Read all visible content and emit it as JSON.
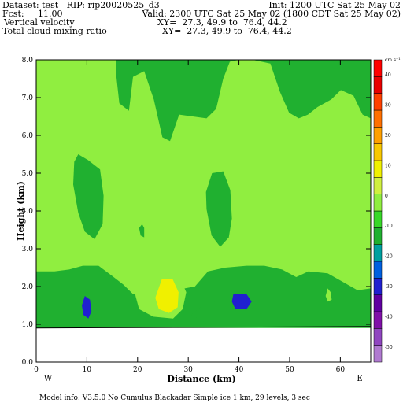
{
  "header": {
    "dataset": "Dataset: test   RIP: rip20020525_d3",
    "init": "Init: 1200 UTC Sat 25 May 02",
    "fcst": "Fcst:     11.00",
    "valid": "Valid: 2300 UTC Sat 25 May 02 (1800 CDT Sat 25 May 02)",
    "field1": "Vertical velocity",
    "xy1": "XY=  27.3, 49.9 to  76.4, 44.2",
    "field2": "Total cloud mixing ratio",
    "xy2": "XY=  27.3, 49.9 to  76.4, 44.2"
  },
  "footer": {
    "model_info": "Model info: V3.5.0 No Cumulus Blackadar  Simple ice     1 km,   29 levels,     3 sec"
  },
  "chart_data": {
    "type": "heatmap",
    "xlabel": "Distance (km)",
    "ylabel": "Height (km)",
    "xlim": [
      0,
      66
    ],
    "ylim": [
      0,
      8
    ],
    "x_ticks": [
      "0",
      "10",
      "20",
      "30",
      "40",
      "50",
      "60"
    ],
    "y_ticks": [
      "0.0",
      "1.0",
      "2.0",
      "3.0",
      "4.0",
      "5.0",
      "6.0",
      "7.0",
      "8.0"
    ],
    "endpoint_labels": {
      "left": "W",
      "right": "E"
    },
    "colorbar": {
      "unit": "cm s⁻¹",
      "levels": [
        -50,
        -40,
        -30,
        -20,
        -10,
        0,
        10,
        20,
        30,
        40
      ],
      "colors": [
        "#b07ad0",
        "#9046c0",
        "#8010a8",
        "#6000a0",
        "#2020d0",
        "#0060e0",
        "#00a0a0",
        "#20b030",
        "#38d828",
        "#90ee40",
        "#d0f040",
        "#f0f000",
        "#f8c800",
        "#ffa000",
        "#ff7000",
        "#ff4000",
        "#e80000",
        "#ff0000"
      ]
    },
    "terrain_height_km": 0.9,
    "background_value": 0,
    "regions": [
      {
        "value": -5,
        "points": [
          [
            0,
            8
          ],
          [
            15.7,
            8
          ],
          [
            15.7,
            7.7
          ],
          [
            16.4,
            6.85
          ],
          [
            18.3,
            6.65
          ],
          [
            19.1,
            7.55
          ],
          [
            21.3,
            7.7
          ],
          [
            23.2,
            6.95
          ],
          [
            24.9,
            5.95
          ],
          [
            26.4,
            5.85
          ],
          [
            28.2,
            6.55
          ],
          [
            33.6,
            6.45
          ],
          [
            35.5,
            6.7
          ],
          [
            36.9,
            7.5
          ],
          [
            38.2,
            7.95
          ],
          [
            40,
            8
          ],
          [
            0,
            8
          ]
        ]
      },
      {
        "value": -5,
        "points": [
          [
            42.7,
            8
          ],
          [
            46.2,
            7.9
          ],
          [
            48.1,
            7.15
          ],
          [
            49.9,
            6.6
          ],
          [
            51.8,
            6.45
          ],
          [
            53.6,
            6.55
          ],
          [
            55.5,
            6.75
          ],
          [
            58.2,
            6.95
          ],
          [
            60.1,
            7.2
          ],
          [
            62.6,
            7.05
          ],
          [
            64.4,
            6.55
          ],
          [
            66,
            6.45
          ],
          [
            66,
            8
          ],
          [
            42.7,
            8
          ]
        ]
      },
      {
        "value": -5,
        "points": [
          [
            8.3,
            5.5
          ],
          [
            10.2,
            5.35
          ],
          [
            12.6,
            5.1
          ],
          [
            13.3,
            4.4
          ],
          [
            13.1,
            3.65
          ],
          [
            11.5,
            3.25
          ],
          [
            9.6,
            3.45
          ],
          [
            8.3,
            3.95
          ],
          [
            7.3,
            4.7
          ],
          [
            7.5,
            5.3
          ],
          [
            8.3,
            5.5
          ]
        ]
      },
      {
        "value": -5,
        "points": [
          [
            36.9,
            5.05
          ],
          [
            38.3,
            4.55
          ],
          [
            38.6,
            3.8
          ],
          [
            38,
            3.3
          ],
          [
            36.3,
            3.05
          ],
          [
            34.6,
            3.35
          ],
          [
            33.6,
            4.05
          ],
          [
            33.5,
            4.5
          ],
          [
            34.7,
            5
          ],
          [
            36.9,
            5.05
          ]
        ]
      },
      {
        "value": -5,
        "points": [
          [
            20.9,
            3.65
          ],
          [
            21.3,
            3.55
          ],
          [
            21.3,
            3.3
          ],
          [
            20.6,
            3.35
          ],
          [
            20.3,
            3.55
          ],
          [
            20.9,
            3.65
          ]
        ]
      },
      {
        "value": -5,
        "points": [
          [
            0,
            2.4
          ],
          [
            3.6,
            2.4
          ],
          [
            6.5,
            2.45
          ],
          [
            9.2,
            2.55
          ],
          [
            12.3,
            2.55
          ],
          [
            14.8,
            2.3
          ],
          [
            17.2,
            2.05
          ],
          [
            19.1,
            1.8
          ],
          [
            21.3,
            1.85
          ],
          [
            23.7,
            1.8
          ],
          [
            26.3,
            1.9
          ],
          [
            29.3,
            1.95
          ],
          [
            31.3,
            2.0
          ],
          [
            33.9,
            2.4
          ],
          [
            37.3,
            2.5
          ],
          [
            41.5,
            2.55
          ],
          [
            45,
            2.55
          ],
          [
            48.5,
            2.45
          ],
          [
            51.3,
            2.25
          ],
          [
            53.7,
            2.4
          ],
          [
            57.5,
            2.35
          ],
          [
            60.8,
            2.1
          ],
          [
            63.4,
            1.9
          ],
          [
            66,
            1.95
          ],
          [
            66,
            0.9
          ],
          [
            0,
            0.9
          ],
          [
            0,
            2.4
          ]
        ]
      },
      {
        "value": 5,
        "points": [
          [
            9.5,
            8
          ],
          [
            14.6,
            8
          ],
          [
            14.9,
            7.6
          ],
          [
            14.6,
            7.2
          ],
          [
            13.3,
            6.95
          ],
          [
            11.3,
            6.9
          ],
          [
            9.5,
            7.3
          ],
          [
            9.5,
            8
          ]
        ]
      },
      {
        "value": 5,
        "points": [
          [
            9.5,
            3.0
          ],
          [
            10.3,
            2.95
          ],
          [
            11.2,
            3.1
          ],
          [
            10.6,
            3.3
          ],
          [
            9.6,
            3.3
          ],
          [
            9.5,
            3.0
          ]
        ]
      },
      {
        "value": 5,
        "points": [
          [
            19.3,
            2.1
          ],
          [
            22.3,
            2.45
          ],
          [
            26.1,
            2.4
          ],
          [
            28.3,
            2.25
          ],
          [
            29.6,
            1.85
          ],
          [
            28.9,
            1.4
          ],
          [
            27,
            1.15
          ],
          [
            23.1,
            1.2
          ],
          [
            20.3,
            1.4
          ],
          [
            19.6,
            1.75
          ],
          [
            19.3,
            2.1
          ]
        ]
      },
      {
        "value": 5,
        "points": [
          [
            57.5,
            1.95
          ],
          [
            58.1,
            1.85
          ],
          [
            58.3,
            1.65
          ],
          [
            57.5,
            1.6
          ],
          [
            57.1,
            1.75
          ],
          [
            57.5,
            1.95
          ]
        ]
      },
      {
        "value": 15,
        "points": [
          [
            24.8,
            2.2
          ],
          [
            26.9,
            2.2
          ],
          [
            28.1,
            1.85
          ],
          [
            27.9,
            1.45
          ],
          [
            26.2,
            1.3
          ],
          [
            24.2,
            1.4
          ],
          [
            23.5,
            1.7
          ],
          [
            24.8,
            2.2
          ]
        ]
      },
      {
        "value": -8,
        "points": [
          [
            0,
            1.3
          ],
          [
            3.2,
            1.35
          ],
          [
            5.6,
            1.45
          ],
          [
            8.6,
            1.6
          ],
          [
            10.6,
            1.55
          ],
          [
            12.1,
            1.35
          ],
          [
            13.1,
            1.1
          ],
          [
            12.5,
            0.95
          ],
          [
            7.3,
            0.92
          ],
          [
            2.9,
            0.9
          ],
          [
            0,
            0.9
          ],
          [
            0,
            1.3
          ]
        ]
      },
      {
        "value": -8,
        "points": [
          [
            18.6,
            1.05
          ],
          [
            22.1,
            1.2
          ],
          [
            23.4,
            1.05
          ],
          [
            20.9,
            0.95
          ],
          [
            18.6,
            1.05
          ]
        ]
      },
      {
        "value": -8,
        "points": [
          [
            30.6,
            1.25
          ],
          [
            33.4,
            1.55
          ],
          [
            37.3,
            1.65
          ],
          [
            41.3,
            1.55
          ],
          [
            44.1,
            1.3
          ],
          [
            45.1,
            1.0
          ],
          [
            41.3,
            0.92
          ],
          [
            35,
            0.92
          ],
          [
            30.6,
            1.25
          ]
        ]
      },
      {
        "value": -8,
        "points": [
          [
            50.3,
            1.35
          ],
          [
            51.3,
            1.2
          ],
          [
            51.2,
            0.98
          ],
          [
            50.1,
            0.95
          ],
          [
            49.9,
            1.15
          ],
          [
            50.3,
            1.35
          ]
        ]
      },
      {
        "value": -12,
        "points": [
          [
            9.6,
            1.75
          ],
          [
            10.6,
            1.65
          ],
          [
            10.9,
            1.35
          ],
          [
            10.3,
            1.15
          ],
          [
            9.3,
            1.25
          ],
          [
            9.0,
            1.5
          ],
          [
            9.6,
            1.75
          ]
        ]
      },
      {
        "value": -12,
        "points": [
          [
            38.9,
            1.8
          ],
          [
            41.5,
            1.8
          ],
          [
            42.5,
            1.6
          ],
          [
            41.5,
            1.4
          ],
          [
            39.3,
            1.4
          ],
          [
            38.6,
            1.6
          ],
          [
            38.9,
            1.8
          ]
        ]
      }
    ]
  }
}
